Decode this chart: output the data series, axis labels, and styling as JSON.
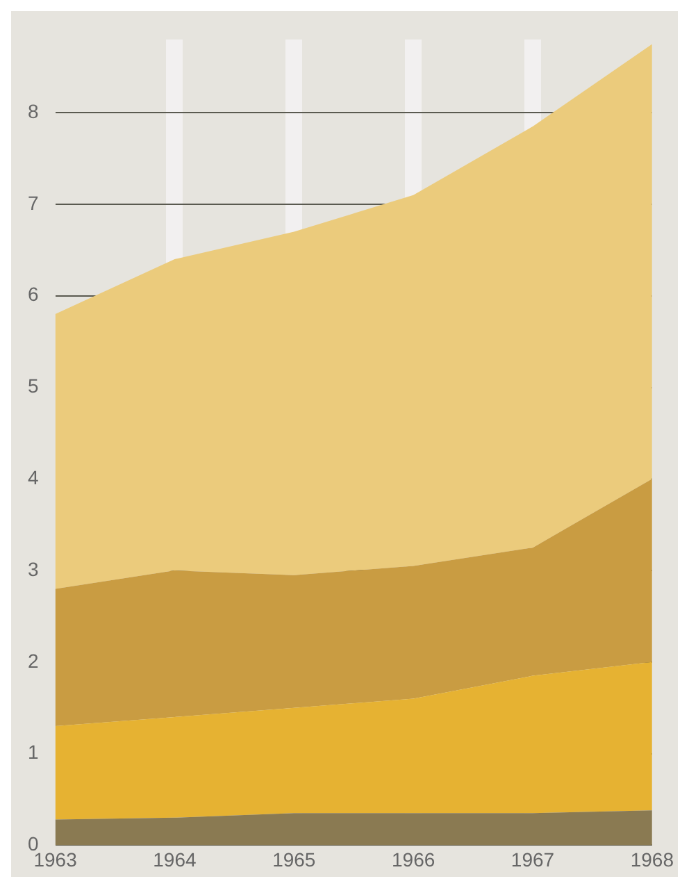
{
  "chart_data": {
    "type": "area",
    "stacked": true,
    "x": [
      1963,
      1964,
      1965,
      1966,
      1967,
      1968
    ],
    "xlim": [
      1963,
      1968
    ],
    "xticks": [
      1963,
      1964,
      1965,
      1966,
      1967,
      1968
    ],
    "ylim": [
      0,
      8.8
    ],
    "yticks": [
      0,
      1,
      2,
      3,
      4,
      5,
      6,
      7,
      8
    ],
    "grid": true,
    "series": [
      {
        "color": "#8a7a52",
        "values": [
          0.28,
          0.3,
          0.35,
          0.35,
          0.35,
          0.38
        ]
      },
      {
        "color": "#e6b232",
        "values": [
          1.02,
          1.1,
          1.15,
          1.25,
          1.5,
          1.62
        ]
      },
      {
        "color": "#c99c42",
        "values": [
          1.5,
          1.6,
          1.45,
          1.45,
          1.4,
          2.0
        ]
      },
      {
        "color": "#ebcb7c",
        "values": [
          3.0,
          3.4,
          3.75,
          4.05,
          4.6,
          4.75
        ]
      }
    ]
  }
}
